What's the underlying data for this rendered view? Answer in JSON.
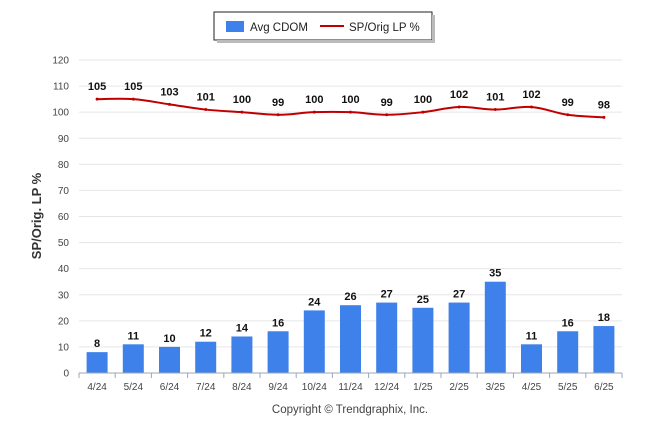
{
  "chart_data": {
    "type": "bar",
    "categories": [
      "4/24",
      "5/24",
      "6/24",
      "7/24",
      "8/24",
      "9/24",
      "10/24",
      "11/24",
      "12/24",
      "1/25",
      "2/25",
      "3/25",
      "4/25",
      "5/25",
      "6/25"
    ],
    "series": [
      {
        "name": "Avg CDOM",
        "type": "bar",
        "color": "#3f81ea",
        "values": [
          8,
          11,
          10,
          12,
          14,
          16,
          24,
          26,
          27,
          25,
          27,
          35,
          11,
          16,
          18
        ]
      },
      {
        "name": "SP/Orig LP %",
        "type": "line",
        "color": "#c00000",
        "values": [
          105,
          105,
          103,
          101,
          100,
          99,
          100,
          100,
          99,
          100,
          102,
          101,
          102,
          99,
          98
        ]
      }
    ],
    "xlabel": "",
    "ylabel": "SP/Orig. LP %",
    "ylim": [
      0,
      120
    ],
    "yticks": [
      0,
      10,
      20,
      30,
      40,
      50,
      60,
      70,
      80,
      90,
      100,
      110,
      120
    ],
    "grid": true,
    "legend": "top-center"
  },
  "credit": "Copyright © Trendgraphix, Inc."
}
